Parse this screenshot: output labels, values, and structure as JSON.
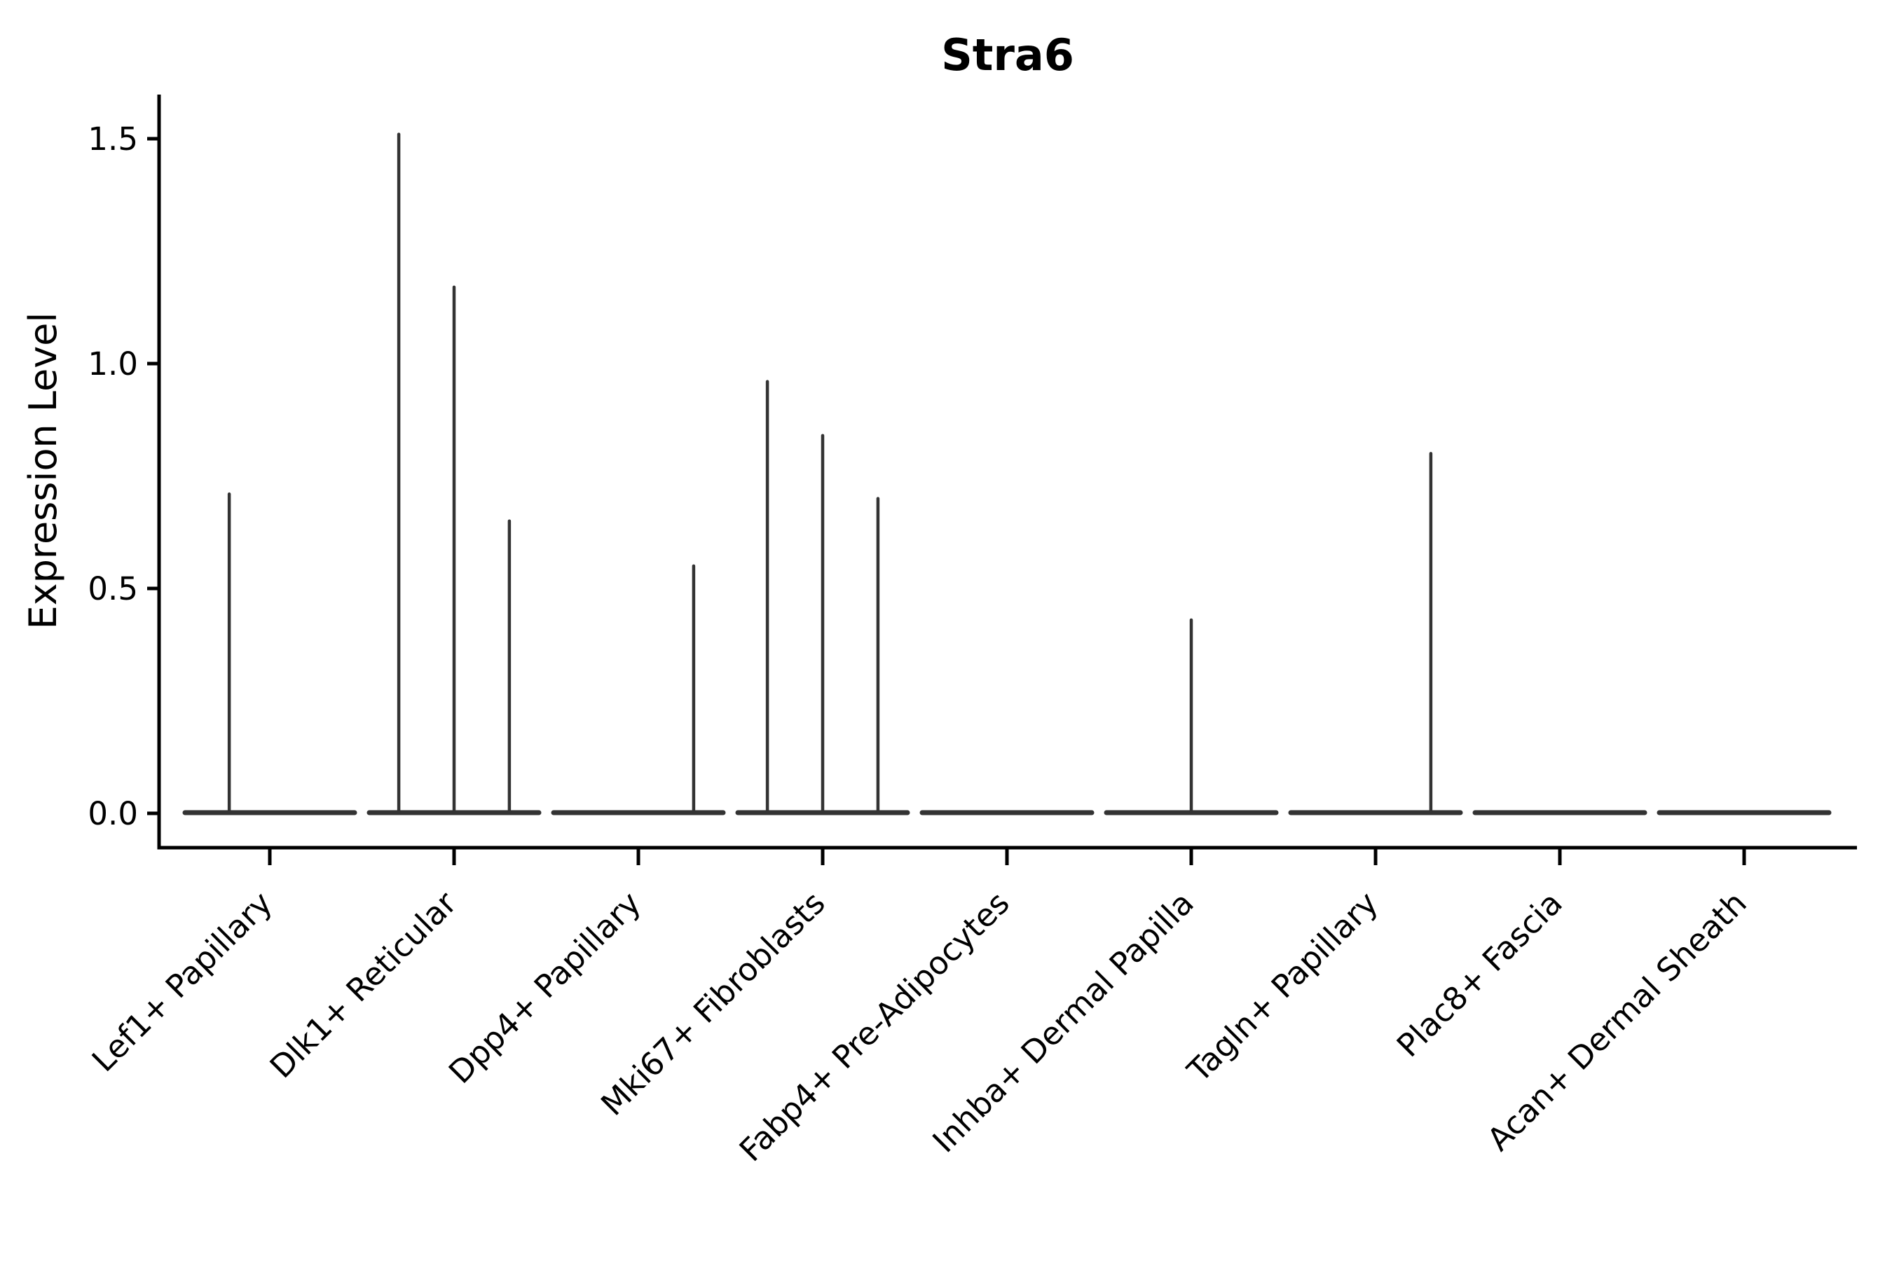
{
  "chart_data": {
    "type": "violin",
    "title": "Stra6",
    "ylabel": "Expression Level",
    "xlabel": "",
    "grid": false,
    "legend": null,
    "yticks": [
      {
        "value": 0.0,
        "label": "0.0"
      },
      {
        "value": 0.5,
        "label": "0.5"
      },
      {
        "value": 1.0,
        "label": "1.0"
      },
      {
        "value": 1.5,
        "label": "1.5"
      }
    ],
    "ylim": [
      -0.05,
      1.6
    ],
    "categories": [
      "Lef1+ Papillary",
      "Dlk1+ Reticular",
      "Dpp4+ Papillary",
      "Mki67+ Fibroblasts",
      "Fabp4+ Pre-Adipocytes",
      "Inhba+ Dermal Papilla",
      "Tagln+ Papillary",
      "Plac8+ Fascia",
      "Acan+ Dermal Sheath"
    ],
    "violins": [
      {
        "category": "Lef1+ Papillary",
        "spikes": [
          {
            "pos": -0.22,
            "value": 0.71
          }
        ]
      },
      {
        "category": "Dlk1+ Reticular",
        "spikes": [
          {
            "pos": -0.3,
            "value": 1.51
          },
          {
            "pos": 0.0,
            "value": 1.17
          },
          {
            "pos": 0.3,
            "value": 0.65
          }
        ]
      },
      {
        "category": "Dpp4+ Papillary",
        "spikes": [
          {
            "pos": 0.3,
            "value": 0.55
          }
        ]
      },
      {
        "category": "Mki67+ Fibroblasts",
        "spikes": [
          {
            "pos": -0.3,
            "value": 0.96
          },
          {
            "pos": 0.0,
            "value": 0.84
          },
          {
            "pos": 0.3,
            "value": 0.7
          }
        ]
      },
      {
        "category": "Fabp4+ Pre-Adipocytes",
        "spikes": []
      },
      {
        "category": "Inhba+ Dermal Papilla",
        "spikes": [
          {
            "pos": 0.0,
            "value": 0.43
          }
        ]
      },
      {
        "category": "Tagln+ Papillary",
        "spikes": [
          {
            "pos": 0.3,
            "value": 0.8
          }
        ]
      },
      {
        "category": "Plac8+ Fascia",
        "spikes": []
      },
      {
        "category": "Acan+ Dermal Sheath",
        "spikes": []
      }
    ],
    "colors": {
      "axis": "#000000",
      "text": "#000000",
      "violin_line": "#333333",
      "background": "#ffffff"
    }
  }
}
